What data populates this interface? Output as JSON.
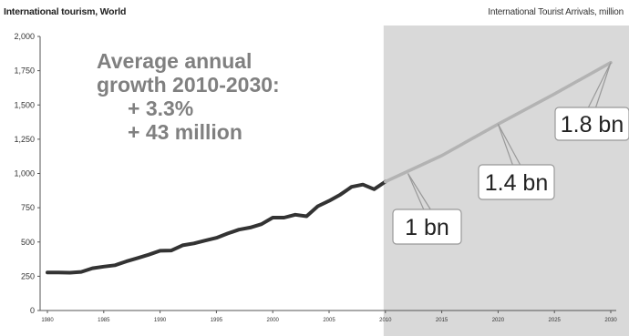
{
  "header": {
    "title": "International tourism, World",
    "subtitle": "International Tourist Arrivals, million"
  },
  "annotation": {
    "line1": "Average annual",
    "line2": "growth 2010-2030:",
    "line3": "+ 3.3%",
    "line4": "+ 43 million"
  },
  "callouts": [
    {
      "label": "1 bn",
      "year": 2012,
      "value": 1000
    },
    {
      "label": "1.4 bn",
      "year": 2020,
      "value": 1360
    },
    {
      "label": "1.8 bn",
      "year": 2030,
      "value": 1809
    }
  ],
  "colors": {
    "actual": "#333333",
    "forecast": "#b3b3b3",
    "forecast_area": "#d9d9d9"
  },
  "chart_data": {
    "type": "line",
    "title": "International tourism, World",
    "ylabel": "International Tourist Arrivals, million",
    "xlim": [
      1980,
      2030
    ],
    "ylim": [
      0,
      2000
    ],
    "y_ticks": [
      "0",
      "250",
      "500",
      "750",
      "1,000",
      "1,250",
      "1,500",
      "1,750",
      "2,000"
    ],
    "x_ticks": [
      "1980",
      "1985",
      "1990",
      "1995",
      "2000",
      "2005",
      "2010",
      "2015",
      "2020",
      "2025",
      "2030"
    ],
    "forecast_region": [
      2010,
      2030
    ],
    "series": [
      {
        "style": "actual",
        "x": [
          1980,
          1981,
          1982,
          1983,
          1984,
          1985,
          1986,
          1987,
          1988,
          1989,
          1990,
          1991,
          1992,
          1993,
          1994,
          1995,
          1996,
          1997,
          1998,
          1999,
          2000,
          2001,
          2002,
          2003,
          2004,
          2005,
          2006,
          2007,
          2008,
          2009,
          2010
        ],
        "values": [
          278,
          278,
          276,
          282,
          308,
          320,
          330,
          358,
          383,
          407,
          436,
          438,
          476,
          490,
          510,
          530,
          562,
          590,
          605,
          630,
          678,
          678,
          699,
          688,
          761,
          800,
          846,
          902,
          919,
          885,
          940
        ]
      },
      {
        "style": "forecast",
        "x": [
          2010,
          2015,
          2020,
          2025,
          2030
        ],
        "values": [
          940,
          1130,
          1360,
          1580,
          1809
        ]
      }
    ]
  }
}
